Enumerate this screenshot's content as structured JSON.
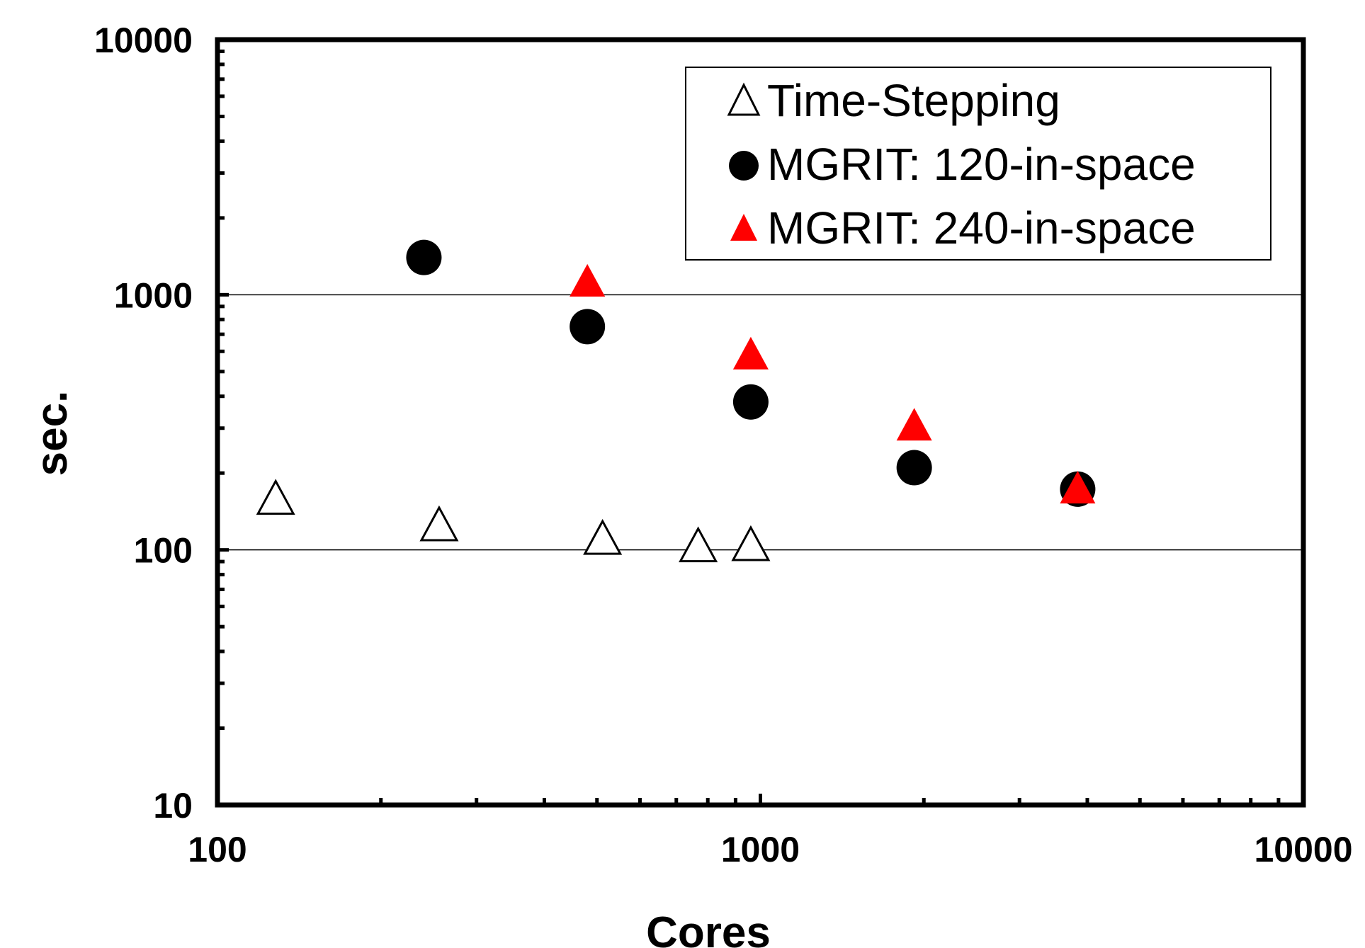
{
  "chart_data": {
    "type": "scatter",
    "title": "",
    "xlabel": "Cores",
    "ylabel": "sec.",
    "xscale": "log",
    "yscale": "log",
    "xlim": [
      100,
      10000
    ],
    "ylim": [
      10,
      10000
    ],
    "xticks": [
      "100",
      "1000",
      "10000"
    ],
    "yticks": [
      "10",
      "100",
      "1000",
      "10000"
    ],
    "grid": "horizontal major lines only",
    "legend": "top-right",
    "series": [
      {
        "name": "Time-Stepping",
        "marker": "open-triangle",
        "color": "#000000",
        "x": [
          128,
          256,
          512,
          768,
          960
        ],
        "y": [
          155,
          122,
          108,
          101,
          102
        ]
      },
      {
        "name": "MGRIT: 120-in-space",
        "marker": "filled-circle",
        "color": "#000000",
        "x": [
          240,
          480,
          960,
          1920,
          3840
        ],
        "y": [
          1400,
          750,
          380,
          210,
          173
        ]
      },
      {
        "name": "MGRIT: 240-in-space",
        "marker": "filled-triangle",
        "color": "#ff0000",
        "x": [
          480,
          960,
          1920,
          3840
        ],
        "y": [
          1100,
          570,
          300,
          170
        ]
      }
    ]
  }
}
